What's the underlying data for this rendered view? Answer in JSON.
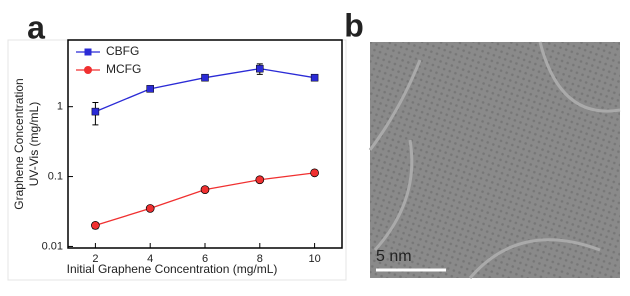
{
  "chart_data": {
    "type": "line",
    "panel_label": "a",
    "x_label": "Initial Graphene Concentration (mg/mL)",
    "y_label": [
      "Graphene Concentration",
      "UV-Vis (mg/mL)"
    ],
    "x": [
      2,
      4,
      6,
      8,
      10
    ],
    "series": [
      {
        "name": "CBFG",
        "color": "#2b2bd6",
        "marker": "square",
        "values": [
          0.85,
          1.8,
          2.6,
          3.5,
          2.6
        ],
        "errors": [
          0.3,
          0.1,
          0.2,
          0.6,
          0.15
        ]
      },
      {
        "name": "MCFG",
        "color": "#f03030",
        "marker": "circle",
        "values": [
          0.02,
          0.035,
          0.065,
          0.09,
          0.113
        ],
        "errors": [
          0.002,
          0.002,
          0.003,
          0.004,
          0.005
        ]
      }
    ],
    "xlim": [
      1,
      11
    ],
    "xticks": [
      2,
      4,
      6,
      8,
      10
    ],
    "ylim": [
      0.0095,
      9
    ],
    "yticks": [
      0.01,
      0.1,
      1
    ],
    "log_y": true,
    "legend": "top-left"
  },
  "image_panel": {
    "label": "b",
    "scale_bar": "5 nm"
  }
}
